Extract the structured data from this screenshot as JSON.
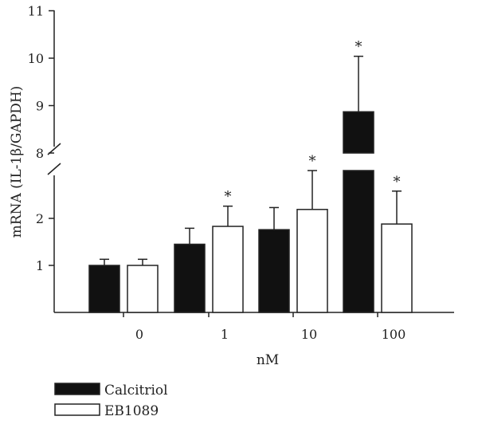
{
  "chart_data": {
    "type": "bar",
    "xlabel": "nM",
    "ylabel": "mRNA (IL-1β/GAPDH)",
    "categories": [
      "0",
      "1",
      "10",
      "100"
    ],
    "series": [
      {
        "name": "Calcitriol",
        "color": "#111111",
        "values": [
          1.0,
          1.45,
          1.76,
          8.87
        ],
        "errors": [
          0.13,
          0.34,
          0.47,
          1.17
        ],
        "significant": [
          false,
          false,
          false,
          true
        ]
      },
      {
        "name": "EB1089",
        "color": "#ffffff",
        "values": [
          1.0,
          1.83,
          2.19,
          1.88
        ],
        "errors": [
          0.13,
          0.43,
          0.98,
          0.7
        ],
        "significant": [
          false,
          true,
          true,
          true
        ]
      }
    ],
    "y_axis": {
      "broken": true,
      "lower_segment": [
        0,
        2.8
      ],
      "upper_segment": [
        8,
        11
      ],
      "ticks": [
        "1",
        "2",
        "8",
        "9",
        "10",
        "11"
      ]
    },
    "significance_marker": "*",
    "legend": {
      "position": "bottom-left"
    }
  }
}
